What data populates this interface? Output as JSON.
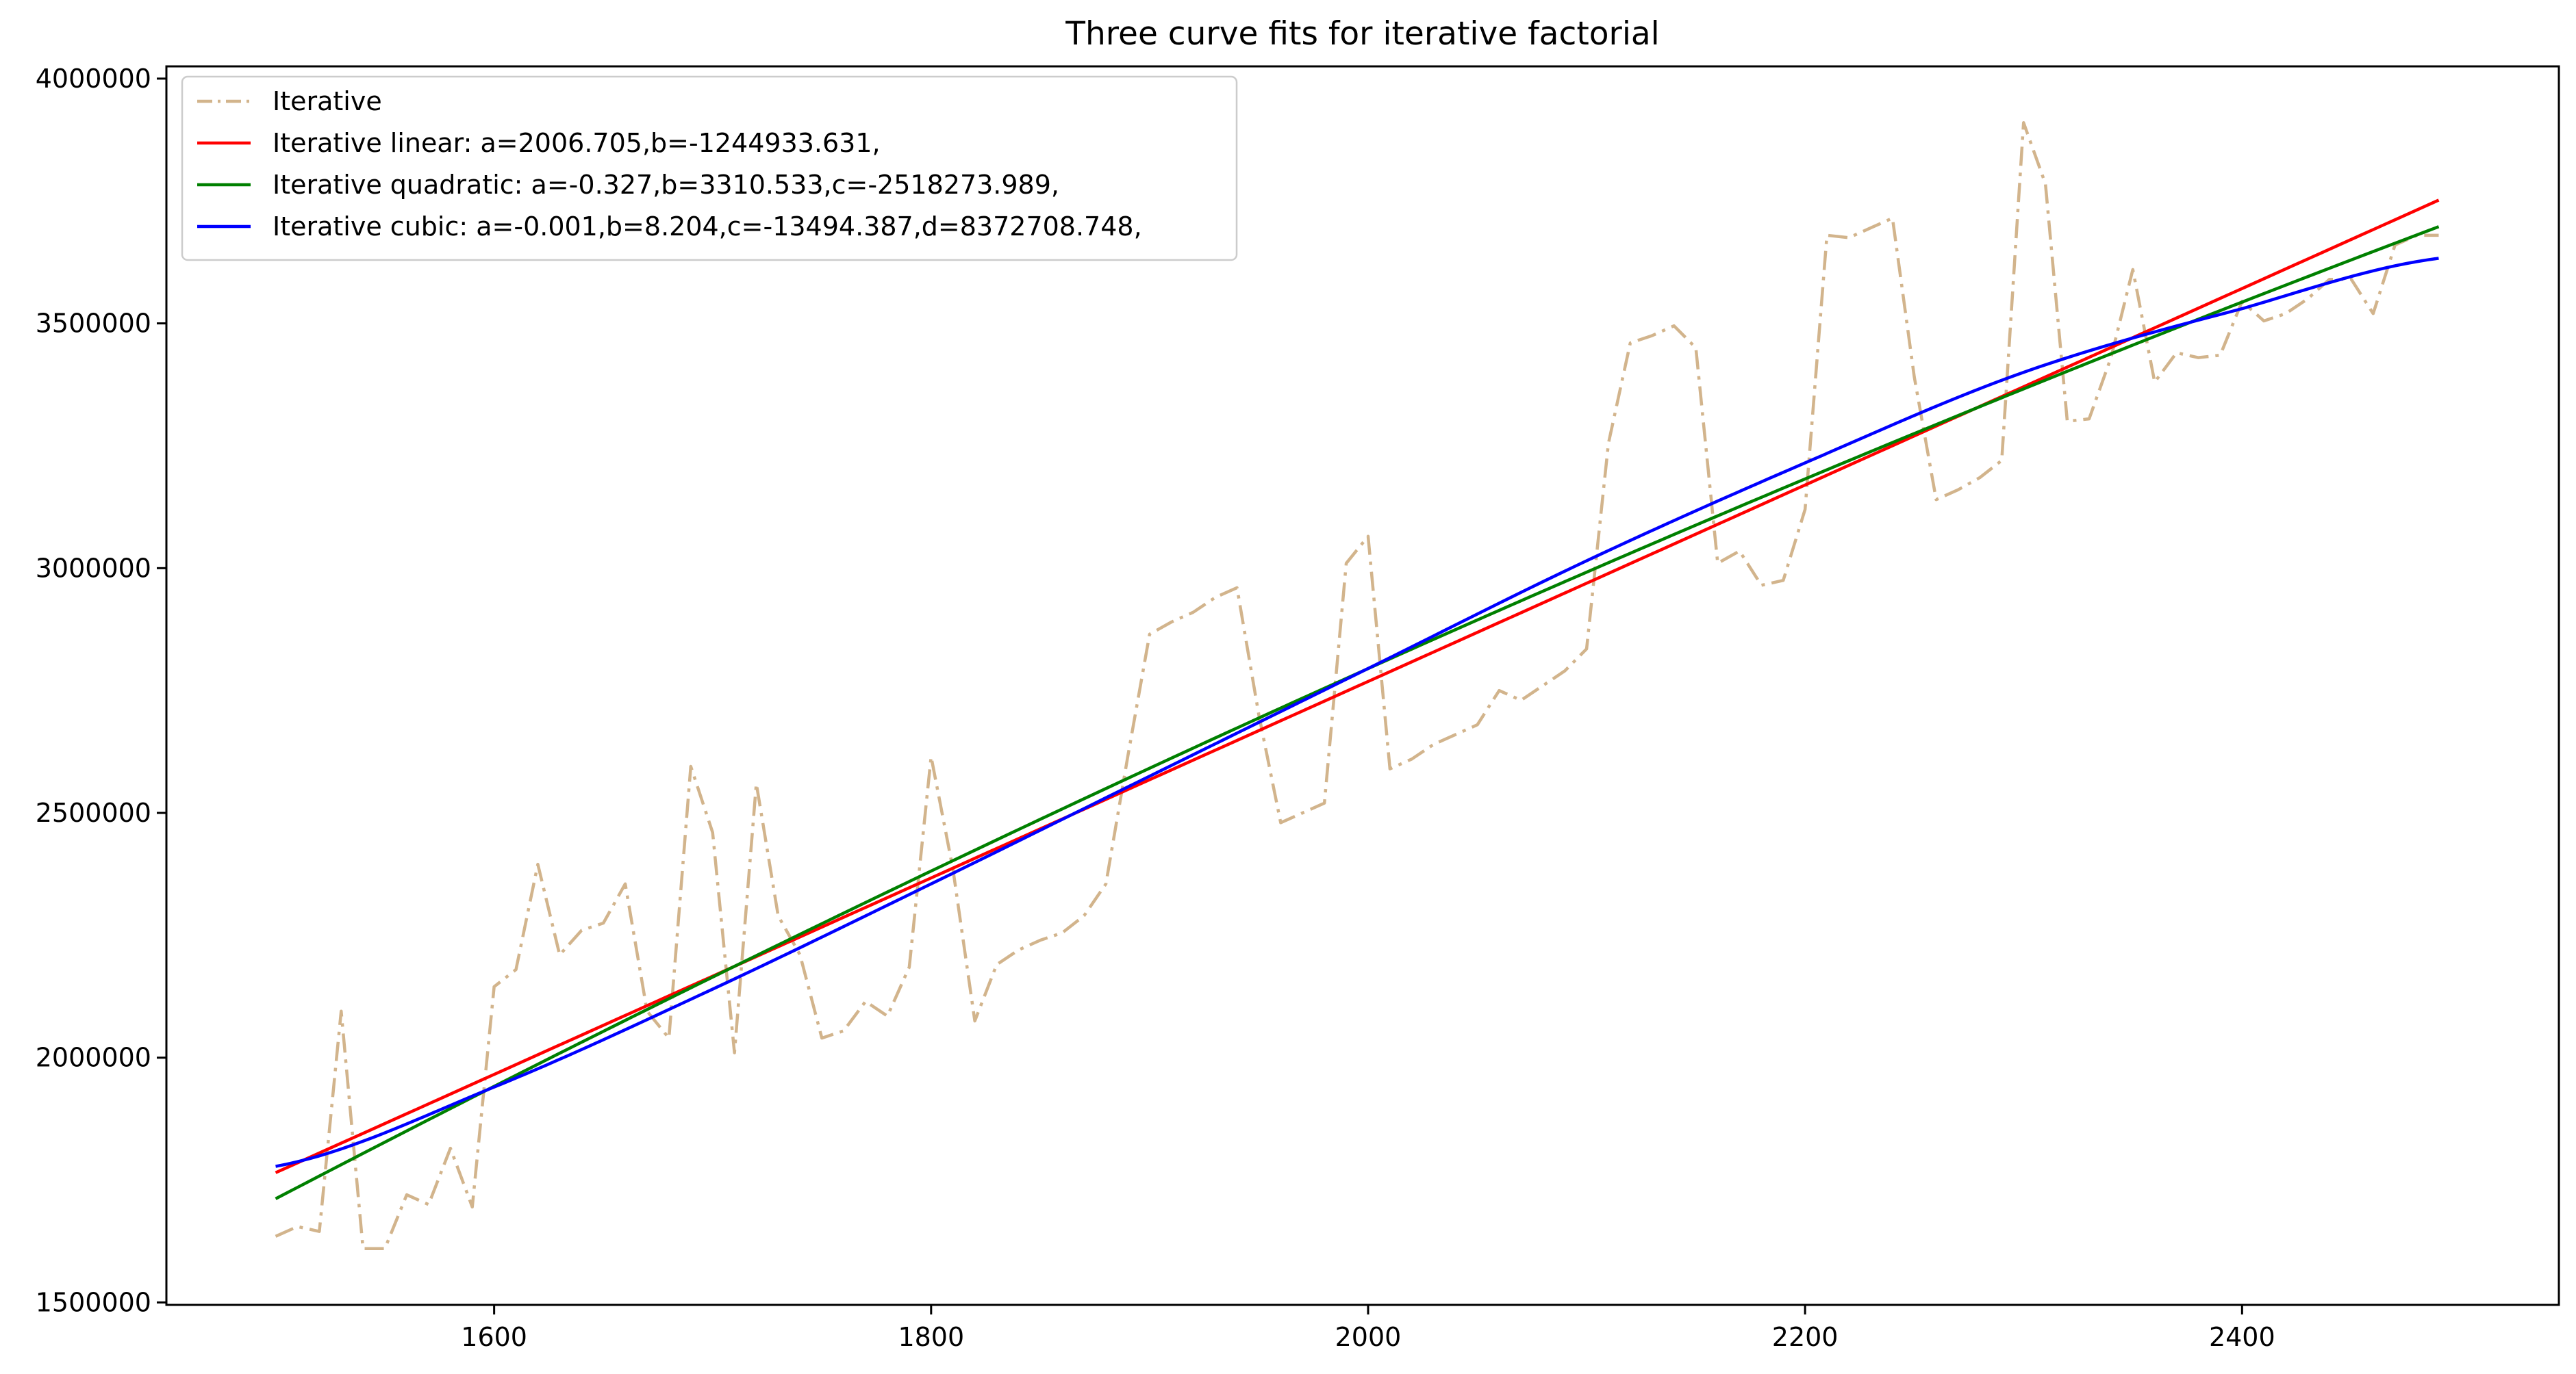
{
  "chart_data": {
    "type": "line",
    "title": "Three curve fits for iterative factorial",
    "xlabel": "",
    "ylabel": "",
    "xlim": [
      1450,
      2545
    ],
    "ylim": [
      1495000,
      4025000
    ],
    "x_ticks": [
      1600,
      1800,
      2000,
      2200,
      2400
    ],
    "y_ticks": [
      1500000,
      2000000,
      2500000,
      3000000,
      3500000,
      4000000
    ],
    "x_tick_labels": [
      "1600",
      "1800",
      "2000",
      "2200",
      "2400"
    ],
    "y_tick_labels": [
      "1500000",
      "2000000",
      "2500000",
      "3000000",
      "3500000",
      "4000000"
    ],
    "grid": false,
    "legend_position": "top-left",
    "series": [
      {
        "name": "Iterative",
        "kind": "data",
        "color": "#d2b48c",
        "dash": "dash-dot",
        "x": [
          1500,
          1510,
          1520,
          1530,
          1540,
          1550,
          1560,
          1570,
          1580,
          1590,
          1600,
          1610,
          1620,
          1630,
          1640,
          1650,
          1660,
          1670,
          1680,
          1690,
          1700,
          1710,
          1720,
          1730,
          1740,
          1750,
          1760,
          1770,
          1780,
          1790,
          1800,
          1810,
          1820,
          1830,
          1840,
          1850,
          1860,
          1870,
          1880,
          1890,
          1900,
          1910,
          1920,
          1930,
          1940,
          1950,
          1960,
          1970,
          1980,
          1990,
          2000,
          2010,
          2020,
          2030,
          2040,
          2050,
          2060,
          2070,
          2080,
          2090,
          2100,
          2110,
          2120,
          2130,
          2140,
          2150,
          2160,
          2170,
          2180,
          2190,
          2200,
          2210,
          2220,
          2230,
          2240,
          2250,
          2260,
          2270,
          2280,
          2290,
          2300,
          2310,
          2320,
          2330,
          2340,
          2350,
          2360,
          2370,
          2380,
          2390,
          2400,
          2410,
          2420,
          2430,
          2440,
          2450,
          2460,
          2470,
          2480,
          2490
        ],
        "y": [
          1635000,
          1655000,
          1645000,
          2095000,
          1610000,
          1610000,
          1720000,
          1700000,
          1815000,
          1695000,
          2145000,
          2180000,
          2395000,
          2210000,
          2260000,
          2275000,
          2355000,
          2095000,
          2040000,
          2595000,
          2460000,
          2010000,
          2560000,
          2290000,
          2210000,
          2040000,
          2055000,
          2115000,
          2085000,
          2185000,
          2615000,
          2385000,
          2075000,
          2190000,
          2220000,
          2240000,
          2255000,
          2290000,
          2355000,
          2615000,
          2865000,
          2890000,
          2910000,
          2940000,
          2960000,
          2700000,
          2480000,
          2500000,
          2520000,
          3010000,
          3065000,
          2590000,
          2610000,
          2640000,
          2660000,
          2680000,
          2750000,
          2730000,
          2760000,
          2790000,
          2835000,
          3255000,
          3460000,
          3475000,
          3495000,
          3450000,
          3010000,
          3035000,
          2965000,
          2975000,
          3120000,
          3680000,
          3675000,
          3695000,
          3715000,
          3390000,
          3140000,
          3160000,
          3185000,
          3220000,
          3910000,
          3785000,
          3300000,
          3305000,
          3430000,
          3610000,
          3380000,
          3440000,
          3430000,
          3435000,
          3545000,
          3505000,
          3520000,
          3550000,
          3590000,
          3590000,
          3520000,
          3660000,
          3680000,
          3680000
        ]
      },
      {
        "name": "Iterative linear: a=2006.705,b=-1244933.631,",
        "kind": "fit",
        "color": "#ff0000",
        "coeffs": [
          2006.705,
          -1244933.631
        ],
        "x_range": [
          1500,
          2490
        ]
      },
      {
        "name": "Iterative quadratic: a=-0.327,b=3310.533,c=-2518273.989,",
        "kind": "fit",
        "color": "#008000",
        "coeffs": [
          -0.327,
          3310.533,
          -2518273.989
        ],
        "x_range": [
          1500,
          2490
        ]
      },
      {
        "name": "Iterative cubic: a=-0.001,b=8.204,c=-13494.387,d=8372708.748,",
        "kind": "fit",
        "color": "#0000ff",
        "points": {
          "x": [
            1500,
            1600,
            1700,
            1800,
            1900,
            2000,
            2100,
            2200,
            2300,
            2400,
            2490
          ],
          "y": [
            1778000,
            1940000,
            2140000,
            2355000,
            2575000,
            2795000,
            3015000,
            3215000,
            3400000,
            3530000,
            3633000
          ]
        },
        "x_range": [
          1500,
          2490
        ]
      }
    ]
  }
}
